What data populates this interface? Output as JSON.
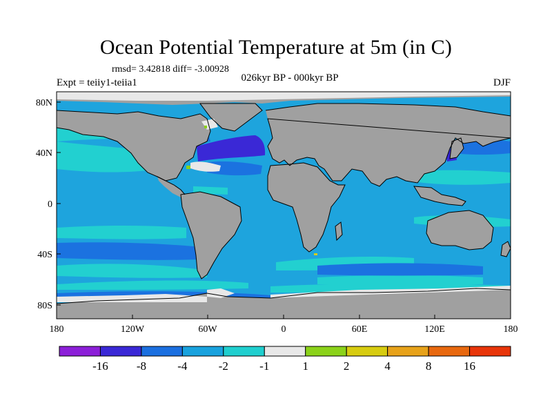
{
  "title": "Ocean Potential Temperature at 5m (in C)",
  "stats": "rmsd= 3.42818 diff= -3.00928",
  "experiment": "Expt = teiiy1-teiia1",
  "period": "026kyr BP - 000kyr BP",
  "season": "DJF",
  "lat_ticks": [
    "80N",
    "40N",
    "0",
    "40S",
    "80S"
  ],
  "lon_ticks": [
    "180",
    "120W",
    "60W",
    "0",
    "60E",
    "120E",
    "180"
  ],
  "colorbar": {
    "labels": [
      "-16",
      "-8",
      "-4",
      "-2",
      "-1",
      "1",
      "2",
      "4",
      "8",
      "16"
    ],
    "colors": [
      "#8c1fd8",
      "#3a28d6",
      "#1b6fe0",
      "#19a2de",
      "#20cfcf",
      "#e8e8e8",
      "#8bd21a",
      "#d7cc10",
      "#e7a21a",
      "#e8680f",
      "#e8350a"
    ]
  },
  "map_colors": {
    "land": "#a0a0a0",
    "ocean_base": "#1ea4dd",
    "cyan": "#22d0d0",
    "blue": "#1b72e0",
    "dark_blue": "#3a28d6",
    "ice": "#e8e8e8",
    "green": "#8bd21a",
    "yellow": "#d7cc10"
  }
}
